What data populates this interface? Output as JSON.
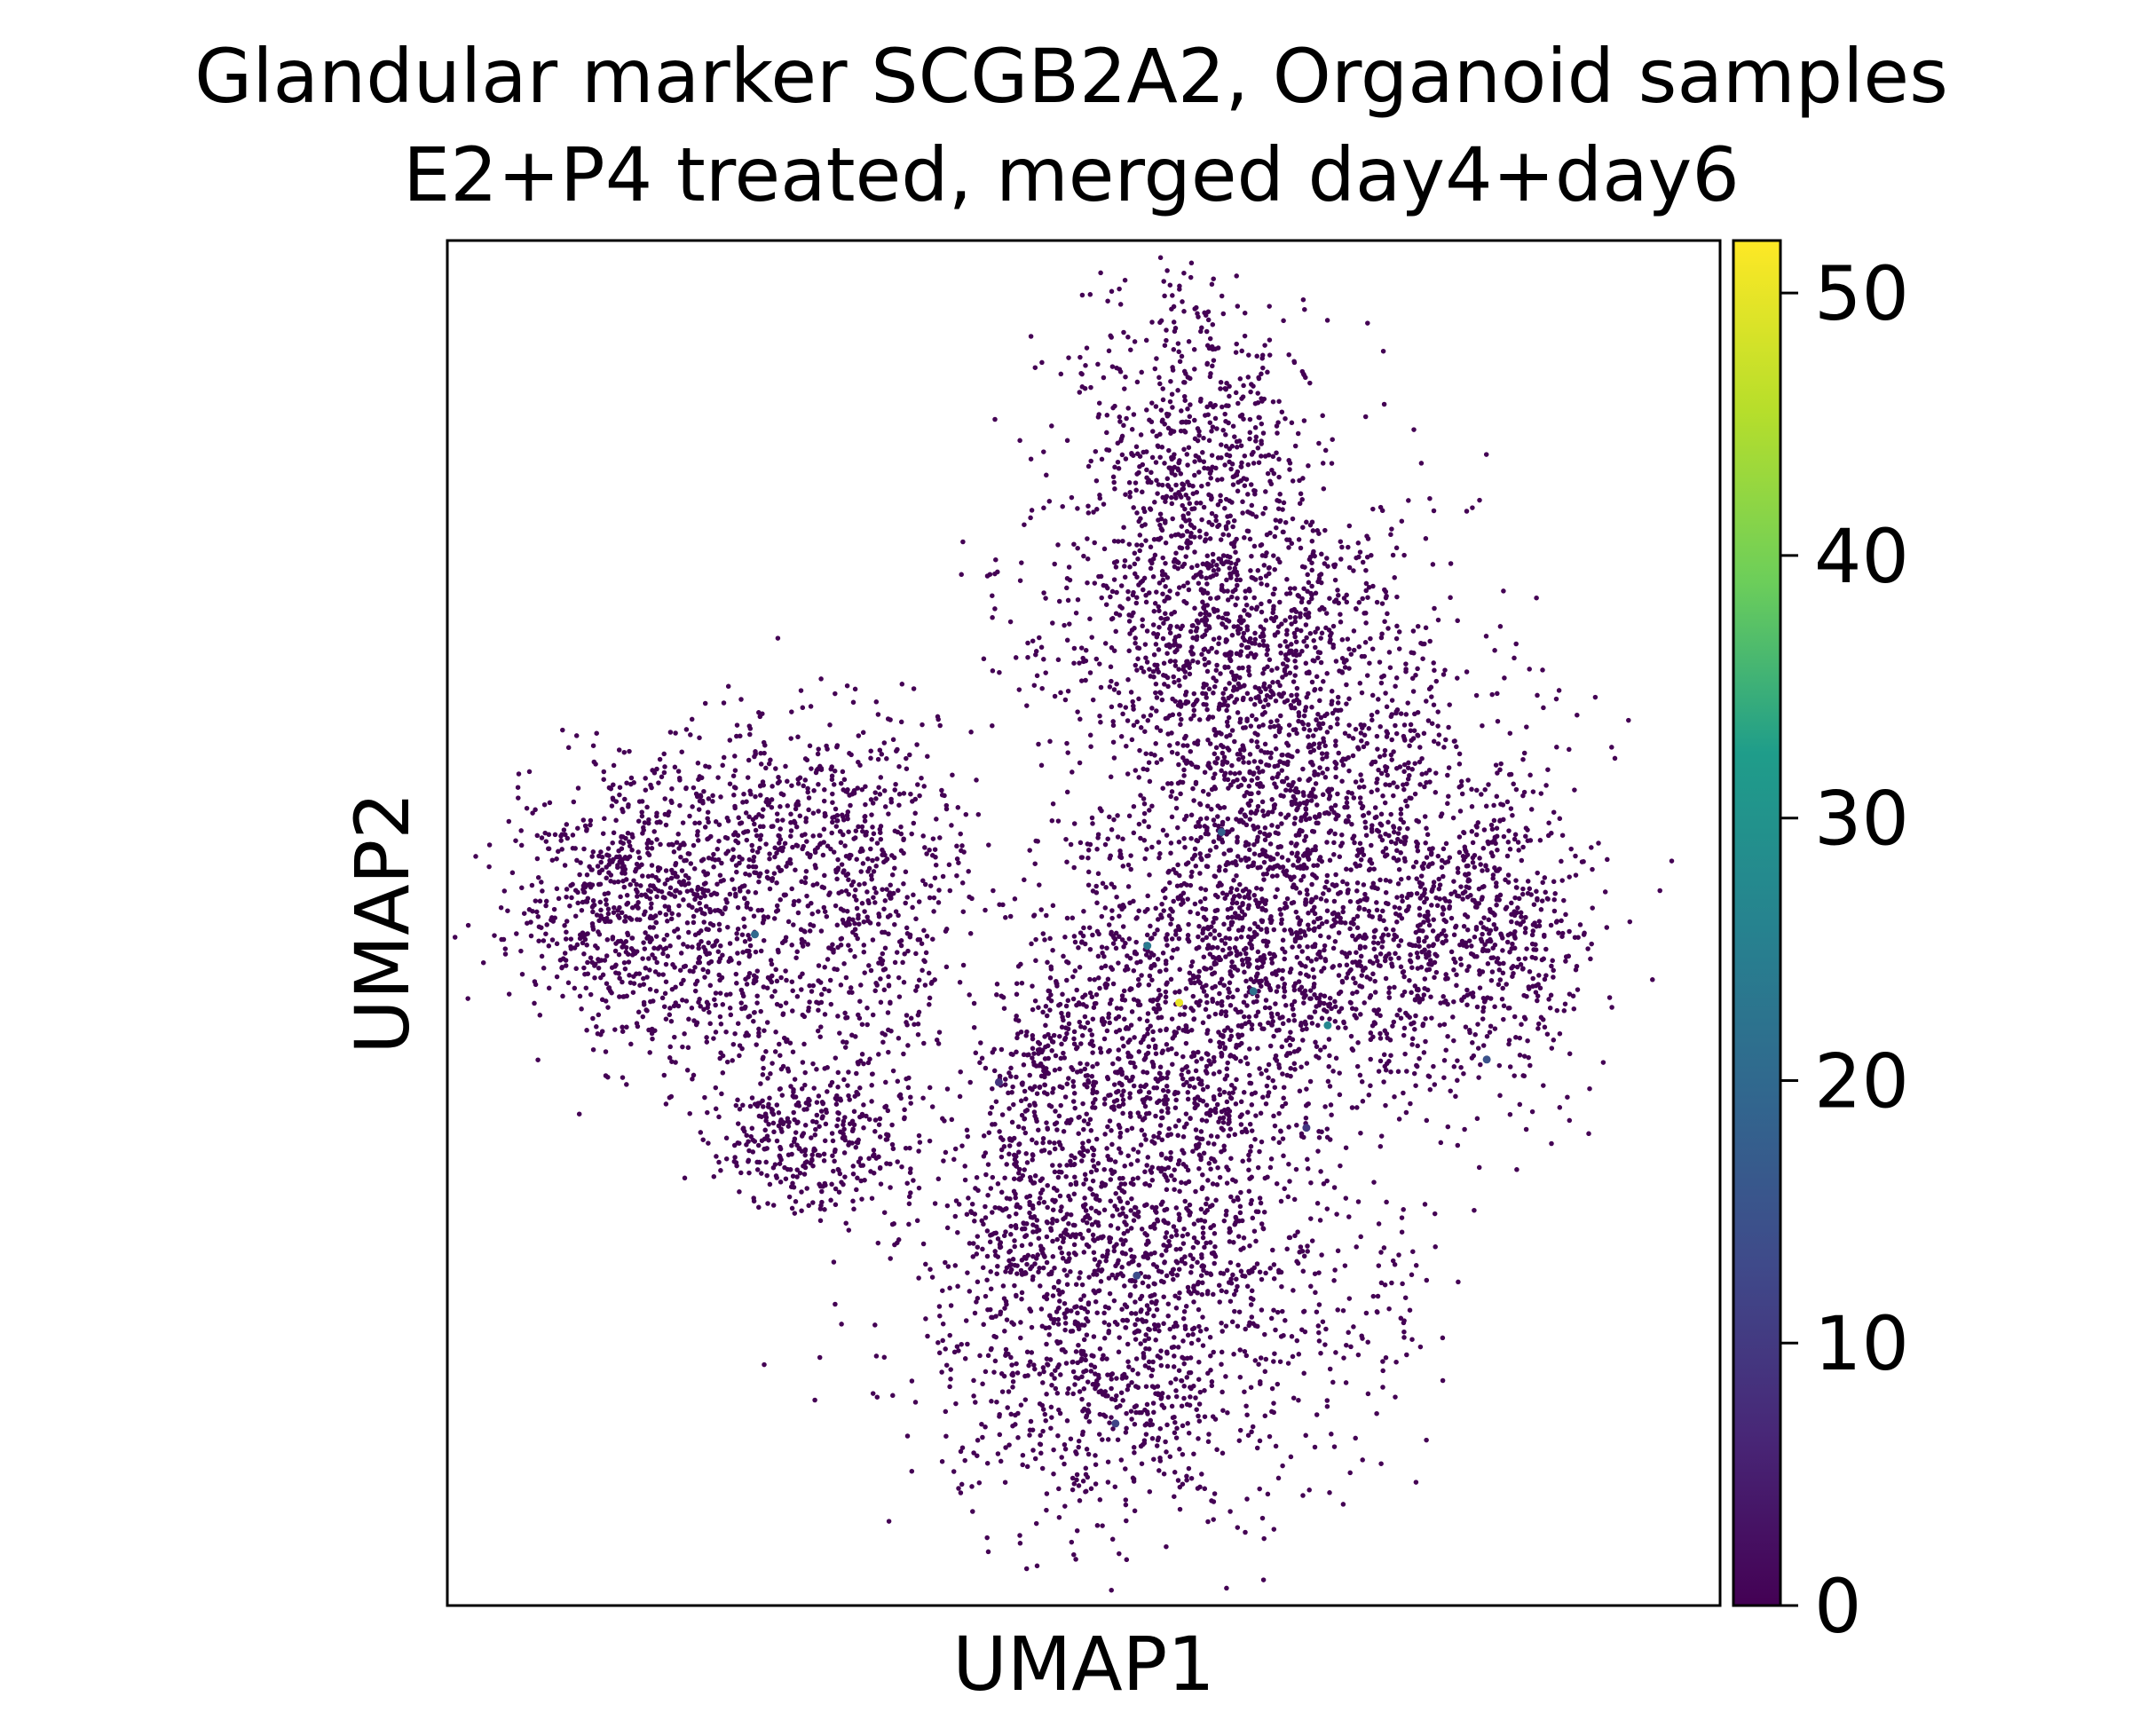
{
  "chart_data": {
    "type": "scatter",
    "title": [
      "Glandular marker SCGB2A2, Organoid samples",
      "E2+P4 treated, merged day4+day6"
    ],
    "xlabel": "UMAP1",
    "ylabel": "UMAP2",
    "x_ticks": false,
    "y_ticks": false,
    "colormap": "viridis",
    "colormap_stops": [
      "#440154",
      "#482777",
      "#3f4a8a",
      "#31678e",
      "#26838f",
      "#1f9d8a",
      "#6cce5a",
      "#b6de2b",
      "#fee825"
    ],
    "colorbar": {
      "range": [
        0,
        52
      ],
      "ticks": [
        0,
        10,
        20,
        30,
        40,
        50
      ],
      "tick_labels": [
        "0",
        "10",
        "20",
        "30",
        "40",
        "50"
      ]
    },
    "base_value": 0,
    "base_color": "#440154",
    "clusters": [
      {
        "name": "left",
        "density": "moderate"
      },
      {
        "name": "upper-right",
        "density": "high"
      },
      {
        "name": "lower-middle",
        "density": "high"
      }
    ],
    "highlighted_points": [
      {
        "x": 6.9,
        "y": 5.3,
        "value": 50
      },
      {
        "x": 8.3,
        "y": 5.1,
        "value": 27
      },
      {
        "x": 6.6,
        "y": 5.8,
        "value": 24
      },
      {
        "x": 7.6,
        "y": 5.4,
        "value": 22
      },
      {
        "x": 9.8,
        "y": 4.8,
        "value": 15
      },
      {
        "x": 2.9,
        "y": 5.9,
        "value": 20
      },
      {
        "x": 7.3,
        "y": 6.8,
        "value": 18
      },
      {
        "x": 6.5,
        "y": 2.9,
        "value": 14
      },
      {
        "x": 6.3,
        "y": 1.6,
        "value": 12
      },
      {
        "x": 5.2,
        "y": 4.6,
        "value": 9
      },
      {
        "x": 8.1,
        "y": 4.2,
        "value": 10
      }
    ]
  }
}
